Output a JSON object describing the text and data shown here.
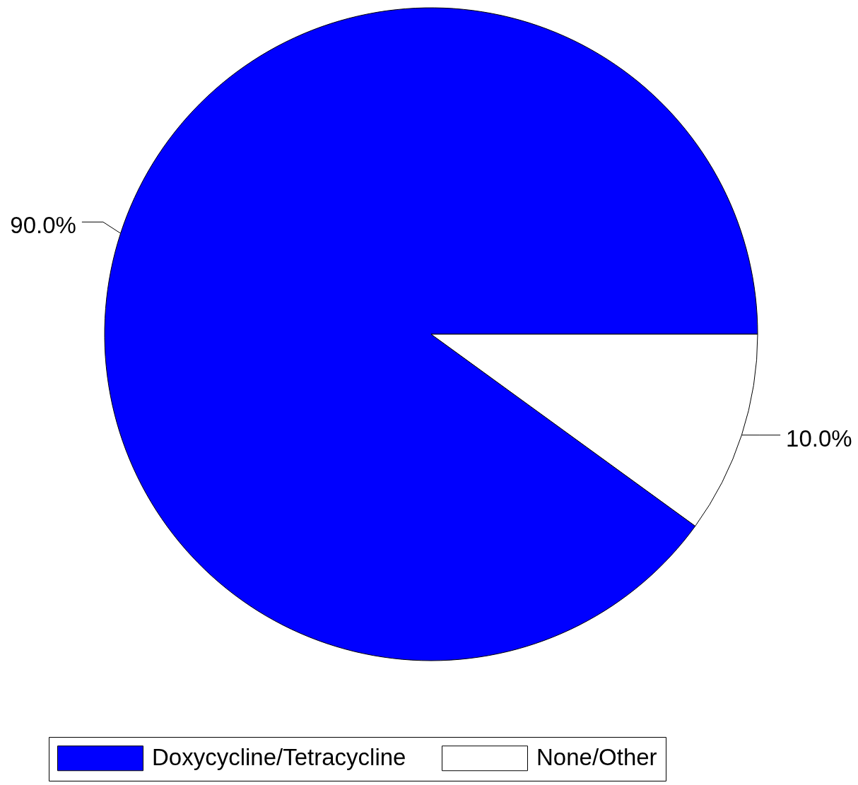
{
  "chart_data": {
    "type": "pie",
    "categories": [
      "Doxycycline/Tetracycline",
      "None/Other"
    ],
    "values": [
      90,
      10
    ],
    "colors": [
      "#0000ff",
      "#ffffff"
    ],
    "value_labels": [
      "90.0%",
      "10.0%"
    ],
    "legend": "bottom"
  }
}
